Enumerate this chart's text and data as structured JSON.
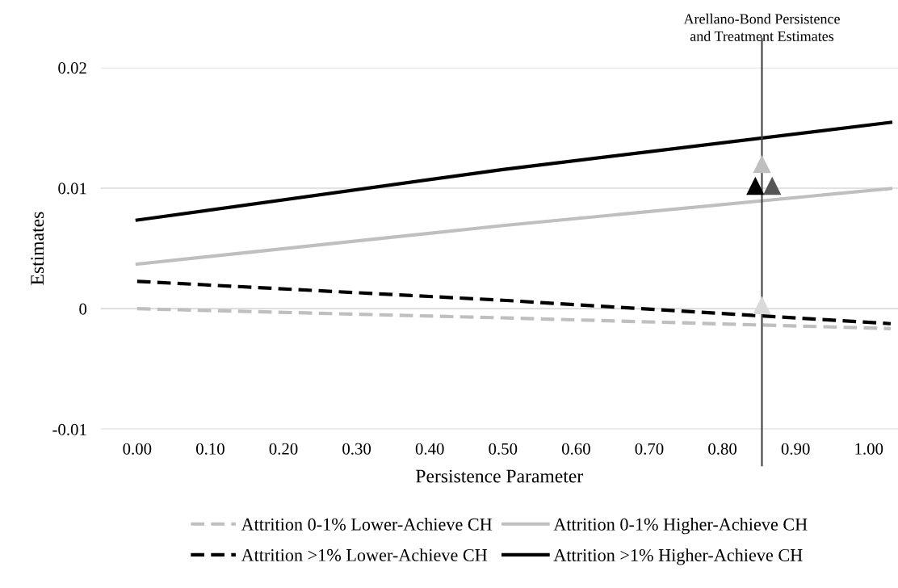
{
  "chart_data": {
    "type": "line",
    "xlabel": "Persistence Parameter",
    "ylabel": "Estimates",
    "xlim": [
      -0.05,
      1.04
    ],
    "xticks": [
      {
        "value": 0,
        "label": "0.00"
      },
      {
        "value": 0.1,
        "label": "0.10"
      },
      {
        "value": 0.2,
        "label": "0.20"
      },
      {
        "value": 0.3,
        "label": "0.30"
      },
      {
        "value": 0.4,
        "label": "0.40"
      },
      {
        "value": 0.5,
        "label": "0.50"
      },
      {
        "value": 0.6,
        "label": "0.60"
      },
      {
        "value": 0.7,
        "label": "0.70"
      },
      {
        "value": 0.8,
        "label": "0.80"
      },
      {
        "value": 0.9,
        "label": "0.90"
      },
      {
        "value": 1,
        "label": "1.00"
      }
    ],
    "ylim": [
      -0.01,
      0.02
    ],
    "yticks": [
      -0.01,
      0,
      0.01,
      0.02
    ],
    "grid": "y",
    "legend": "bottom",
    "series": [
      {
        "name": "Attrition 0-1% Lower-Achieve CH",
        "color": "#bfbfbf",
        "line_style": "dashed",
        "x": [
          0,
          0.5,
          1.03
        ],
        "values": [
          0.0,
          -0.00076,
          -0.00165
        ]
      },
      {
        "name": "Attrition >1% Lower-Achieve CH",
        "color": "#000000",
        "line_style": "dashed",
        "x": [
          0,
          0.5,
          1.03
        ],
        "values": [
          0.00227,
          0.0007,
          -0.00124
        ]
      },
      {
        "name": "Attrition 0-1% Higher-Achieve CH",
        "color": "#bfbfbf",
        "line_style": "solid",
        "x": [
          0,
          0.5,
          1.03
        ],
        "values": [
          0.0037,
          0.0069,
          0.00997
        ]
      },
      {
        "name": "Attrition >1% Higher-Achieve CH",
        "color": "#000000",
        "line_style": "solid",
        "x": [
          0,
          0.5,
          1.03
        ],
        "values": [
          0.00735,
          0.01155,
          0.01546
        ]
      },
      {
        "type": "scatter",
        "marker": "triangle",
        "color": "#bfbfbf",
        "x": [
          0.854
        ],
        "values": [
          0.012
        ]
      },
      {
        "type": "scatter",
        "marker": "triangle",
        "color": "#000000",
        "x": [
          0.845
        ],
        "values": [
          0.0102
        ]
      },
      {
        "type": "scatter",
        "marker": "triangle",
        "color": "#555555",
        "x": [
          0.868
        ],
        "values": [
          0.0102
        ]
      },
      {
        "type": "scatter",
        "marker": "triangle",
        "color": "#d9d9d9",
        "x": [
          0.854
        ],
        "values": [
          0.0003
        ]
      }
    ],
    "ref_lines": [
      {
        "axis": "x",
        "value": 0.854,
        "label": "Arellano-Bond Persistence\nand Treatment Estimates",
        "color": "#404040"
      }
    ]
  }
}
